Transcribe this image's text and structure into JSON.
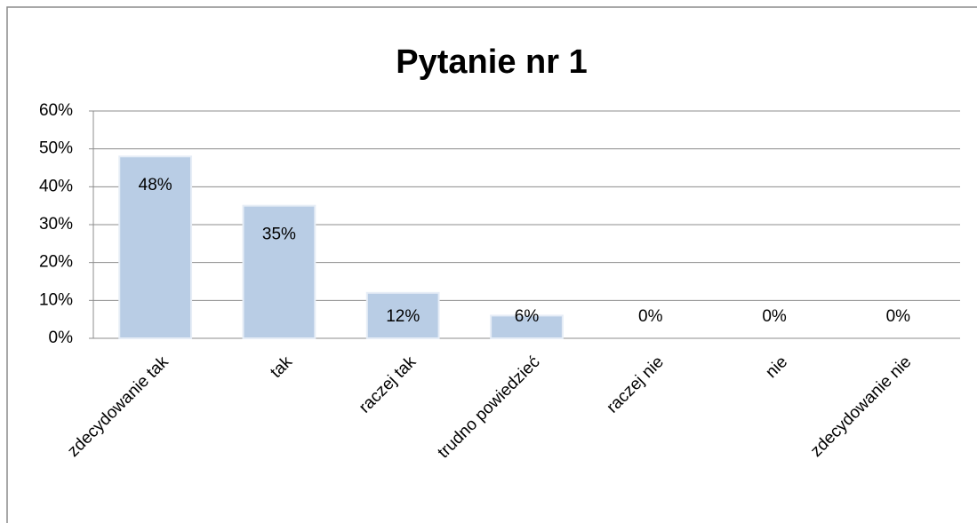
{
  "chart_data": {
    "type": "bar",
    "title": "Pytanie nr 1",
    "categories": [
      "zdecydowanie tak",
      "tak",
      "raczej tak",
      "trudno powiedzieć",
      "raczej nie",
      "nie",
      "zdecydowanie nie"
    ],
    "values": [
      48,
      35,
      12,
      6,
      0,
      0,
      0
    ],
    "value_labels": [
      "48%",
      "35%",
      "12%",
      "6%",
      "0%",
      "0%",
      "0%"
    ],
    "color": "#b9cde5",
    "ylim": [
      0,
      60
    ],
    "yticks": [
      {
        "value": 0,
        "label": "0%"
      },
      {
        "value": 10,
        "label": "10%"
      },
      {
        "value": 20,
        "label": "20%"
      },
      {
        "value": 30,
        "label": "30%"
      },
      {
        "value": 40,
        "label": "40%"
      },
      {
        "value": 50,
        "label": "50%"
      },
      {
        "value": 60,
        "label": "60%"
      }
    ],
    "grid": true
  }
}
